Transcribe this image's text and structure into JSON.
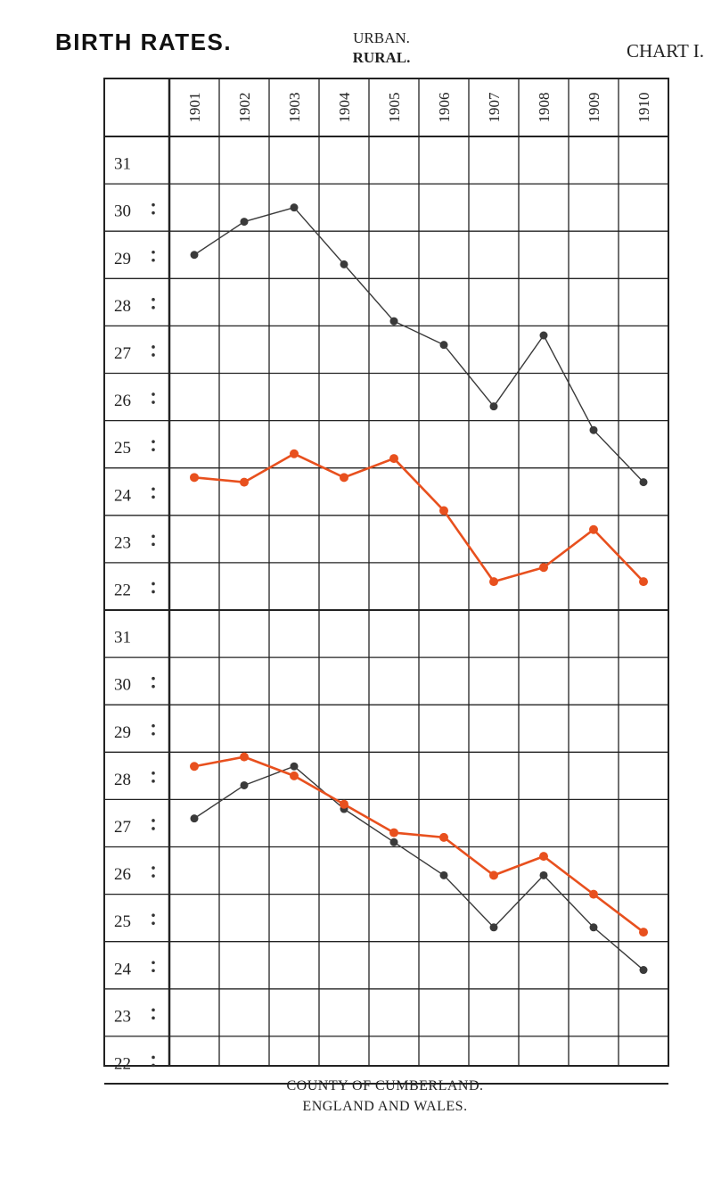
{
  "header": {
    "title": "BIRTH RATES.",
    "urban": "URBAN.",
    "rural": "RURAL.",
    "chart_label": "CHART I."
  },
  "footer": {
    "county": "COUNTY OF CUMBERLAND.",
    "comparison": "ENGLAND AND WALES."
  },
  "colors": {
    "urban": "#3a3a3a",
    "rural": "#e8501e",
    "grid": "#222222"
  },
  "chart_data": [
    {
      "type": "line",
      "panel": "COUNTY OF CUMBERLAND.",
      "x": [
        "1901",
        "1902",
        "1903",
        "1904",
        "1905",
        "1906",
        "1907",
        "1908",
        "1909",
        "1910"
      ],
      "y_ticks": [
        "31",
        "30",
        "29",
        "28",
        "27",
        "26",
        "25",
        "24",
        "23",
        "22"
      ],
      "ylim": [
        22,
        31
      ],
      "grid": true,
      "series": [
        {
          "name": "URBAN.",
          "color": "#3a3a3a",
          "values": [
            29.0,
            29.7,
            30.0,
            28.8,
            27.6,
            27.1,
            25.8,
            27.3,
            25.3,
            24.2
          ]
        },
        {
          "name": "RURAL.",
          "color": "#e8501e",
          "values": [
            24.3,
            24.2,
            24.8,
            24.3,
            24.7,
            23.6,
            22.1,
            22.4,
            23.2,
            22.1
          ]
        }
      ]
    },
    {
      "type": "line",
      "panel": "ENGLAND AND WALES.",
      "x": [
        "1901",
        "1902",
        "1903",
        "1904",
        "1905",
        "1906",
        "1907",
        "1908",
        "1909",
        "1910"
      ],
      "y_ticks": [
        "31",
        "30",
        "29",
        "28",
        "27",
        "26",
        "25",
        "24",
        "23",
        "22"
      ],
      "ylim": [
        22,
        31
      ],
      "grid": true,
      "series": [
        {
          "name": "URBAN.",
          "color": "#3a3a3a",
          "values": [
            27.1,
            27.8,
            28.2,
            27.3,
            26.6,
            25.9,
            24.8,
            25.9,
            24.8,
            23.9
          ]
        },
        {
          "name": "RURAL.",
          "color": "#e8501e",
          "values": [
            28.2,
            28.4,
            28.0,
            27.4,
            26.8,
            26.7,
            25.9,
            26.3,
            25.5,
            24.7
          ]
        }
      ]
    }
  ]
}
